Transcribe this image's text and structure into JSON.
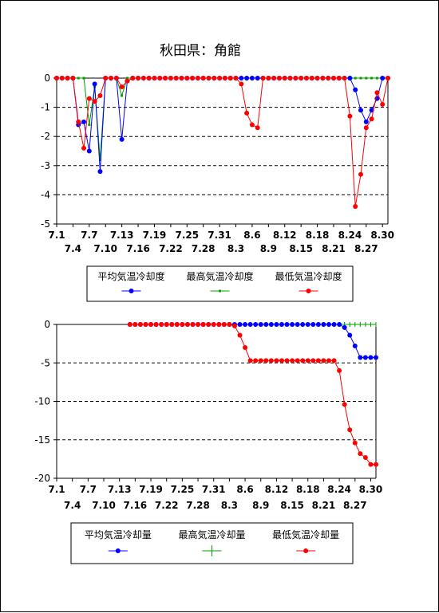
{
  "page_title": "秋田県：角館",
  "chart_data": [
    {
      "type": "line",
      "name": "cooling-degree",
      "ylim": [
        -5,
        0
      ],
      "yticks": [
        0,
        -1,
        -2,
        -3,
        -4,
        -5
      ],
      "x_start": "7.1",
      "x_end": "8.31",
      "xtick_labels_row1": [
        "7.1",
        "7.7",
        "7.13",
        "7.19",
        "7.25",
        "7.31",
        "8.6",
        "8.12",
        "8.18",
        "8.24",
        "8.30"
      ],
      "xtick_labels_row2": [
        "7.4",
        "7.10",
        "7.16",
        "7.22",
        "7.28",
        "8.3",
        "8.9",
        "8.15",
        "8.21",
        "8.27"
      ],
      "legend": [
        "平均気温冷却度",
        "最高気温冷却度",
        "最低気温冷却度"
      ],
      "series": [
        {
          "name": "平均気温冷却度",
          "color": "#0000ff",
          "values": [
            0,
            0,
            0,
            0,
            -1.6,
            -1.5,
            -2.5,
            -0.2,
            -3.2,
            0,
            0,
            0,
            -2.1,
            -0.1,
            0,
            0,
            0,
            0,
            0,
            0,
            0,
            0,
            0,
            0,
            0,
            0,
            0,
            0,
            0,
            0,
            0,
            0,
            0,
            0,
            0,
            0,
            0,
            0,
            0,
            0,
            0,
            0,
            0,
            0,
            0,
            0,
            0,
            0,
            0,
            0,
            0,
            0,
            0,
            0,
            0,
            -0.4,
            -1.1,
            -1.5,
            -1.1,
            -0.7,
            0,
            0
          ]
        },
        {
          "name": "最高気温冷却度",
          "color": "#00a000",
          "values": [
            0,
            0,
            0,
            0,
            0,
            0,
            -1.6,
            -0.3,
            -2.8,
            0,
            0,
            0,
            -0.6,
            0,
            0,
            0,
            0,
            0,
            0,
            0,
            0,
            0,
            0,
            0,
            0,
            0,
            0,
            0,
            0,
            0,
            0,
            0,
            0,
            0,
            0,
            0,
            0,
            0,
            0,
            0,
            0,
            0,
            0,
            0,
            0,
            0,
            0,
            0,
            0,
            0,
            0,
            0,
            0,
            0,
            0,
            0,
            0,
            0,
            0,
            0,
            0,
            0
          ]
        },
        {
          "name": "最低気温冷却度",
          "color": "#ff0000",
          "values": [
            0,
            0,
            0,
            0,
            -1.5,
            -2.4,
            -0.7,
            -0.8,
            -0.6,
            0,
            0,
            0,
            -0.3,
            -0.1,
            0,
            0,
            0,
            0,
            0,
            0,
            0,
            0,
            0,
            0,
            0,
            0,
            0,
            0,
            0,
            0,
            0,
            0,
            0,
            0,
            -0.2,
            -1.2,
            -1.6,
            -1.7,
            0,
            0,
            0,
            0,
            0,
            0,
            0,
            0,
            0,
            0,
            0,
            0,
            0,
            0,
            0,
            0,
            -1.3,
            -4.4,
            -3.3,
            -1.7,
            -1.4,
            -0.5,
            -0.9,
            0
          ]
        }
      ]
    },
    {
      "type": "line",
      "name": "cooling-amount",
      "ylim": [
        -20,
        0
      ],
      "yticks": [
        0,
        -5,
        -10,
        -15,
        -20
      ],
      "x_start": "7.1",
      "x_end": "8.31",
      "xtick_labels_row1": [
        "7.1",
        "7.7",
        "7.13",
        "7.19",
        "7.25",
        "7.31",
        "8.6",
        "8.12",
        "8.18",
        "8.24",
        "8.30"
      ],
      "xtick_labels_row2": [
        "7.4",
        "7.10",
        "7.16",
        "7.22",
        "7.28",
        "8.3",
        "8.9",
        "8.15",
        "8.21",
        "8.27"
      ],
      "legend": [
        "平均気温冷却量",
        "最高気温冷却量",
        "最低気温冷却量"
      ],
      "series": [
        {
          "name": "平均気温冷却量",
          "color": "#0000ff",
          "start_index": 14,
          "values": [
            0,
            0,
            0,
            0,
            0,
            0,
            0,
            0,
            0,
            0,
            0,
            0,
            0,
            0,
            0,
            0,
            0,
            0,
            0,
            0,
            0,
            0,
            0,
            0,
            0,
            0,
            0,
            0,
            0,
            0,
            0,
            0,
            0,
            0,
            0,
            0,
            0,
            0,
            0,
            0,
            0,
            -0.4,
            -1.4,
            -2.8,
            -4.3,
            -4.3,
            -4.3,
            -4.3
          ]
        },
        {
          "name": "最高気温冷却量",
          "color": "#00a000",
          "start_index": 14,
          "values": [
            0,
            0,
            0,
            0,
            0,
            0,
            0,
            0,
            0,
            0,
            0,
            0,
            0,
            0,
            0,
            0,
            0,
            0,
            0,
            0,
            0,
            0,
            0,
            0,
            0,
            0,
            0,
            0,
            0,
            0,
            0,
            0,
            0,
            0,
            0,
            0,
            0,
            0,
            0,
            0,
            0,
            0,
            0,
            0,
            0,
            0,
            0,
            0
          ]
        },
        {
          "name": "最低気温冷却量",
          "color": "#ff0000",
          "start_index": 14,
          "values": [
            0,
            0,
            0,
            0,
            0,
            0,
            0,
            0,
            0,
            0,
            0,
            0,
            0,
            0,
            0,
            0,
            0,
            0,
            0,
            0,
            -0.2,
            -1.4,
            -3.0,
            -4.7,
            -4.7,
            -4.7,
            -4.7,
            -4.7,
            -4.7,
            -4.7,
            -4.7,
            -4.7,
            -4.7,
            -4.7,
            -4.7,
            -4.7,
            -4.7,
            -4.7,
            -4.7,
            -4.7,
            -6.0,
            -10.4,
            -13.7,
            -15.4,
            -16.8,
            -17.3,
            -18.2,
            -18.2
          ]
        }
      ]
    }
  ]
}
